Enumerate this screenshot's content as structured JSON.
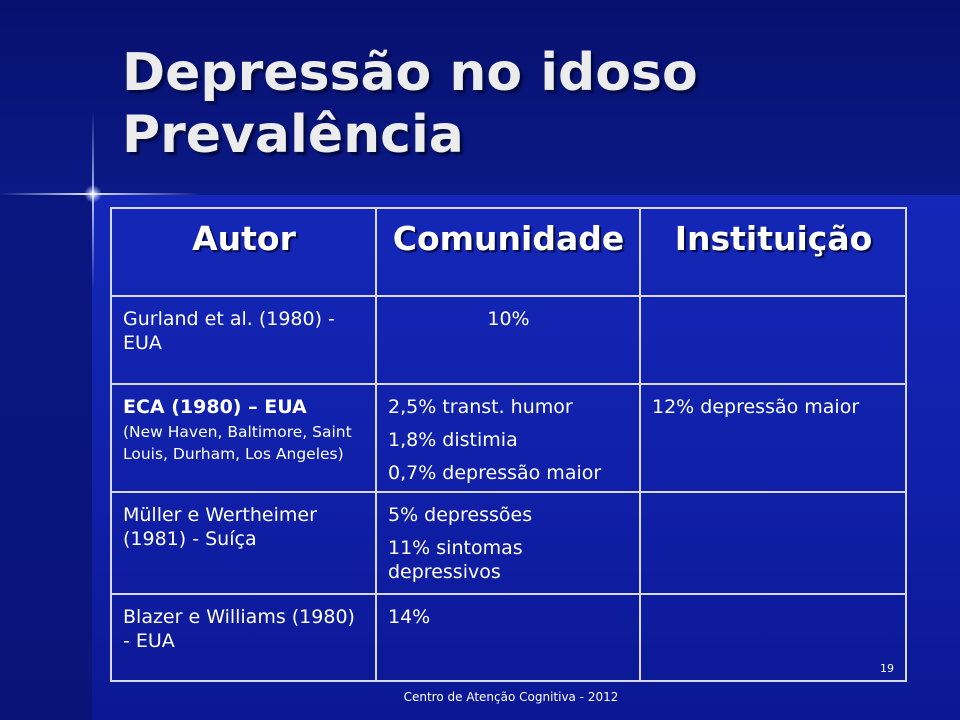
{
  "slide": {
    "title_line1": "Depressão no idoso",
    "title_line2": "Prevalência",
    "page_number": "19",
    "footer": "Centro de Atenção Cognitiva - 2012"
  },
  "table": {
    "headers": [
      "Autor",
      "Comunidade",
      "Instituição"
    ],
    "rows": [
      {
        "autor": "Gurland et al. (1980) - EUA",
        "comunidade": [
          "10%"
        ],
        "instituicao": ""
      },
      {
        "autor": "ECA (1980) – EUA",
        "autor_detail": "(New Haven, Baltimore, Saint Louis, Durham, Los Angeles)",
        "comunidade": [
          "2,5% transt. humor",
          "1,8% distimia",
          "0,7% depressão maior"
        ],
        "instituicao": "12% depressão maior"
      },
      {
        "autor": "Müller e Wertheimer (1981) - Suíça",
        "comunidade": [
          "5% depressões",
          "11% sintomas depressivos"
        ],
        "instituicao": ""
      },
      {
        "autor": "Blazer e Williams (1980) - EUA",
        "comunidade": [
          "14%"
        ],
        "instituicao": ""
      }
    ]
  }
}
